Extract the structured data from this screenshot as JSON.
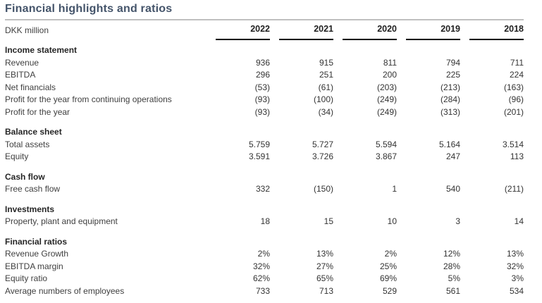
{
  "title": "Financial highlights and ratios",
  "table": {
    "unit_label": "DKK million",
    "years": [
      "2022",
      "2021",
      "2020",
      "2019",
      "2018"
    ],
    "negative_format": "parentheses",
    "sections": [
      {
        "header": "Income statement",
        "rows": [
          {
            "label": "Revenue",
            "values": [
              "936",
              "915",
              "811",
              "794",
              "711"
            ]
          },
          {
            "label": "EBITDA",
            "values": [
              "296",
              "251",
              "200",
              "225",
              "224"
            ]
          },
          {
            "label": "Net financials",
            "values": [
              "(53)",
              "(61)",
              "(203)",
              "(213)",
              "(163)"
            ]
          },
          {
            "label": "Profit for the year from continuing operations",
            "values": [
              "(93)",
              "(100)",
              "(249)",
              "(284)",
              "(96)"
            ]
          },
          {
            "label": "Profit for the year",
            "values": [
              "(93)",
              "(34)",
              "(249)",
              "(313)",
              "(201)"
            ]
          }
        ]
      },
      {
        "header": "Balance sheet",
        "rows": [
          {
            "label": "Total assets",
            "values": [
              "5.759",
              "5.727",
              "5.594",
              "5.164",
              "3.514"
            ]
          },
          {
            "label": "Equity",
            "values": [
              "3.591",
              "3.726",
              "3.867",
              "247",
              "113"
            ]
          }
        ]
      },
      {
        "header": "Cash flow",
        "rows": [
          {
            "label": "Free cash flow",
            "values": [
              "332",
              "(150)",
              "1",
              "540",
              "(211)"
            ]
          }
        ]
      },
      {
        "header": "Investments",
        "rows": [
          {
            "label": "Property, plant and equipment",
            "values": [
              "18",
              "15",
              "10",
              "3",
              "14"
            ]
          }
        ]
      },
      {
        "header": "Financial ratios",
        "rows": [
          {
            "label": "Revenue Growth",
            "values": [
              "2%",
              "13%",
              "2%",
              "12%",
              "13%"
            ]
          },
          {
            "label": "EBITDA margin",
            "values": [
              "32%",
              "27%",
              "25%",
              "28%",
              "32%"
            ]
          },
          {
            "label": "Equity ratio",
            "values": [
              "62%",
              "65%",
              "69%",
              "5%",
              "3%"
            ]
          },
          {
            "label": "Average numbers of employees",
            "values": [
              "733",
              "713",
              "529",
              "561",
              "534"
            ]
          }
        ]
      }
    ]
  },
  "colors": {
    "title": "#44546A",
    "divider": "#BFBFBF",
    "year_underline": "#000000",
    "body_text": "#3a3a3a",
    "background": "#ffffff"
  }
}
